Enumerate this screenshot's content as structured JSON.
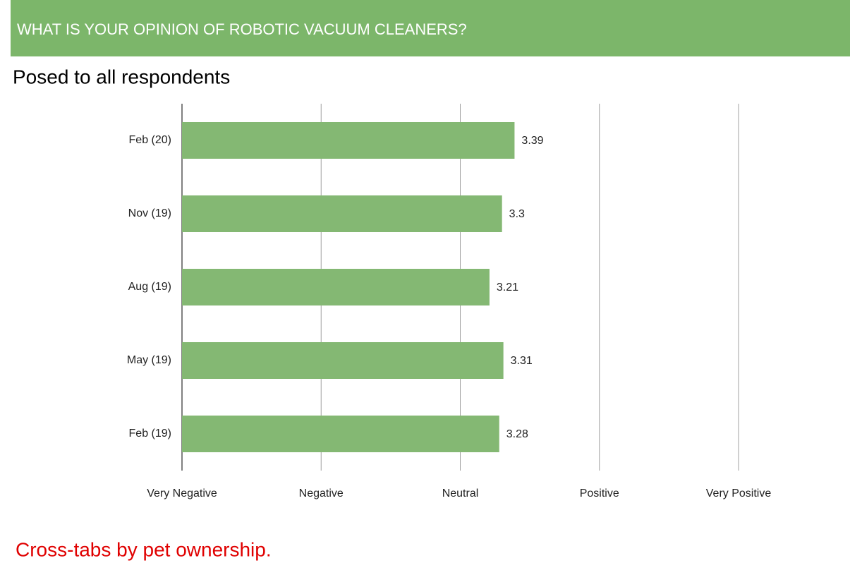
{
  "chart_data": {
    "type": "bar",
    "orientation": "horizontal",
    "title": "WHAT IS YOUR OPINION OF ROBOTIC VACUUM CLEANERS?",
    "subtitle": "Posed to all respondents",
    "annotation": "Cross-tabs by pet ownership.",
    "categories": [
      "Feb (20)",
      "Nov (19)",
      "Aug (19)",
      "May (19)",
      "Feb (19)"
    ],
    "values": [
      3.39,
      3.3,
      3.21,
      3.31,
      3.28
    ],
    "color": "#84b873",
    "xlim": [
      1,
      5
    ],
    "xticks": [
      {
        "value": 1,
        "label": "Very Negative"
      },
      {
        "value": 2,
        "label": "Negative"
      },
      {
        "value": 3,
        "label": "Neutral"
      },
      {
        "value": 4,
        "label": "Positive"
      },
      {
        "value": 5,
        "label": "Very Positive"
      }
    ],
    "grid": true
  }
}
